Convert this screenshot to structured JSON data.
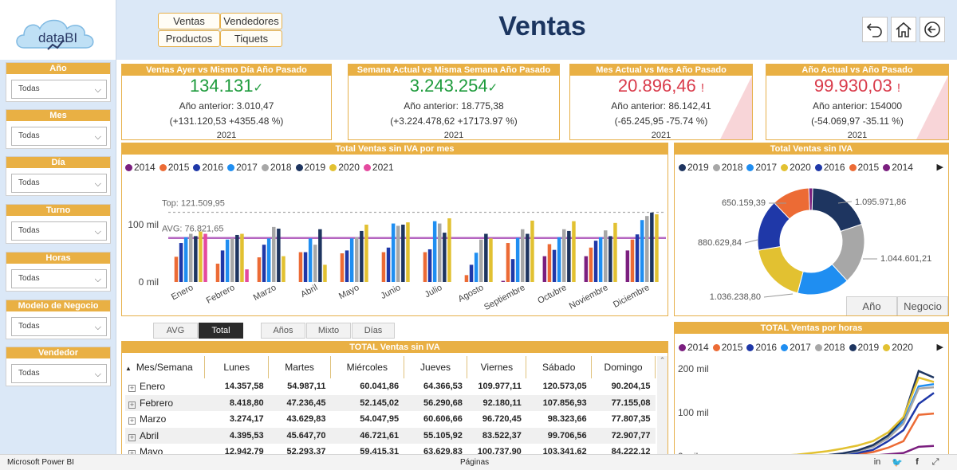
{
  "app": {
    "logo_text": "dataBI",
    "title": "Ventas"
  },
  "nav": [
    {
      "label": "Ventas",
      "name": "nav-ventas-button"
    },
    {
      "label": "Vendedores",
      "name": "nav-vendedores-button"
    },
    {
      "label": "Productos",
      "name": "nav-productos-button"
    },
    {
      "label": "Tiquets",
      "name": "nav-tiquets-button"
    }
  ],
  "icons": [
    "undo-icon",
    "home-icon",
    "back-arrow-icon"
  ],
  "filters": [
    {
      "title": "Año",
      "value": "Todas"
    },
    {
      "title": "Mes",
      "value": "Todas"
    },
    {
      "title": "Día",
      "value": "Todas"
    },
    {
      "title": "Turno",
      "value": "Todas"
    },
    {
      "title": "Horas",
      "value": "Todas"
    },
    {
      "title": "Modelo de Negocio",
      "value": "Todas"
    },
    {
      "title": "Vendedor",
      "value": "Todas"
    }
  ],
  "kpis": [
    {
      "title": "Ventas Ayer vs Mismo Día Año Pasado",
      "value": "134.131",
      "mark": "✓",
      "status": "good",
      "previous": "Año anterior: 3.010,47",
      "delta": "(+131.120,53 +4355.48 %)",
      "year": "2021"
    },
    {
      "title": "Semana Actual vs Misma Semana Año Pasado",
      "value": "3.243.254",
      "mark": "✓",
      "status": "good",
      "previous": "Año anterior: 18.775,38",
      "delta": "(+3.224.478,62 +17173.97 %)",
      "year": "2021"
    },
    {
      "title": "Mes Actual vs Mes Año Pasado",
      "value": "20.896,46",
      "mark": "!",
      "status": "bad",
      "previous": "Año anterior: 86.142,41",
      "delta": "(-65.245,95 -75.74 %)",
      "year": "2021"
    },
    {
      "title": "Año Actual vs Año Pasado",
      "value": "99.930,03",
      "mark": "!",
      "status": "bad",
      "previous": "Año anterior: 154000",
      "delta": "(-54.069,97 -35.11 %)",
      "year": "2021"
    }
  ],
  "colors": {
    "2014": "#7b1f7f",
    "2015": "#ec6b35",
    "2016": "#1f38a8",
    "2017": "#1f8ef1",
    "2018": "#a7a7a7",
    "2019": "#1e3560",
    "2020": "#e2c131",
    "2021": "#e44a9f",
    "accent": "#e9b044",
    "avg_line": "#b565c0"
  },
  "monthly_chart": {
    "title": "Total Ventas sin IVA por mes",
    "legend": [
      "2014",
      "2015",
      "2016",
      "2017",
      "2018",
      "2019",
      "2020",
      "2021"
    ],
    "top_label": "Top: 121.509,95",
    "avg_label": "AVG: 76.821,65",
    "y_ticks": [
      "100 mil",
      "0 mil"
    ]
  },
  "donut_chart": {
    "title": "Total Ventas sin IVA",
    "legend": [
      "2019",
      "2018",
      "2017",
      "2020",
      "2016",
      "2015",
      "2014"
    ],
    "buttons": [
      "Año",
      "Negocio"
    ]
  },
  "toggles": {
    "left": [
      {
        "label": "AVG",
        "active": false
      },
      {
        "label": "Total",
        "active": true
      }
    ],
    "right": [
      {
        "label": "Años"
      },
      {
        "label": "Mixto"
      },
      {
        "label": "Días"
      }
    ]
  },
  "table": {
    "title": "TOTAL Ventas sin IVA",
    "headers": [
      "Mes/Semana",
      "Lunes",
      "Martes",
      "Miércoles",
      "Jueves",
      "Viernes",
      "Sábado",
      "Domingo"
    ],
    "rows": [
      [
        "Enero",
        "14.357,58",
        "54.987,11",
        "60.041,86",
        "64.366,53",
        "109.977,11",
        "120.573,05",
        "90.204,15"
      ],
      [
        "Febrero",
        "8.418,80",
        "47.236,45",
        "52.145,02",
        "56.290,68",
        "92.180,11",
        "107.856,93",
        "77.155,08"
      ],
      [
        "Marzo",
        "3.274,17",
        "43.629,83",
        "54.047,95",
        "60.606,66",
        "96.720,45",
        "98.323,66",
        "77.807,35"
      ],
      [
        "Abril",
        "4.395,53",
        "45.647,70",
        "46.721,61",
        "55.105,92",
        "83.522,37",
        "99.706,56",
        "72.907,77"
      ],
      [
        "Mayo",
        "12.942,79",
        "52.293,37",
        "59.415,31",
        "63.629,83",
        "100.737,90",
        "103.341,62",
        "84.222,12"
      ]
    ]
  },
  "hours_chart": {
    "title": "TOTAL Ventas por horas",
    "legend": [
      "2014",
      "2015",
      "2016",
      "2017",
      "2018",
      "2019",
      "2020"
    ],
    "y_ticks": [
      "200 mil",
      "100 mil",
      "0 mil"
    ]
  },
  "chart_data": [
    {
      "type": "bar",
      "title": "Total Ventas sin IVA por mes",
      "categories": [
        "Enero",
        "Febrero",
        "Marzo",
        "Abril",
        "Mayo",
        "Junio",
        "Julio",
        "Agosto",
        "Septiembre",
        "Octubre",
        "Noviembre",
        "Diciembre"
      ],
      "series": [
        {
          "name": "2014",
          "values": [
            0,
            0,
            0,
            0,
            0,
            0,
            0,
            0,
            2,
            45,
            45,
            55
          ]
        },
        {
          "name": "2015",
          "values": [
            44,
            32,
            43,
            52,
            50,
            52,
            52,
            12,
            68,
            66,
            60,
            74
          ]
        },
        {
          "name": "2016",
          "values": [
            68,
            55,
            65,
            52,
            55,
            60,
            57,
            30,
            40,
            56,
            72,
            83
          ]
        },
        {
          "name": "2017",
          "values": [
            78,
            74,
            76,
            76,
            76,
            102,
            106,
            51,
            77,
            78,
            78,
            108
          ]
        },
        {
          "name": "2018",
          "values": [
            84,
            76,
            96,
            65,
            78,
            98,
            102,
            74,
            92,
            92,
            90,
            115
          ]
        },
        {
          "name": "2019",
          "values": [
            80,
            82,
            93,
            92,
            89,
            100,
            86,
            84,
            84,
            89,
            80,
            121
          ]
        },
        {
          "name": "2020",
          "values": [
            88,
            84,
            45,
            30,
            100,
            104,
            111,
            76,
            107,
            106,
            103,
            118
          ]
        },
        {
          "name": "2021",
          "values": [
            84,
            22,
            0,
            0,
            0,
            0,
            0,
            0,
            0,
            0,
            0,
            0
          ]
        }
      ],
      "reference_lines": {
        "top": 121509.95,
        "avg": 76821.65
      },
      "ylabel": "",
      "y_ticks": [
        "0 mil",
        "100 mil"
      ],
      "ylim": [
        0,
        130
      ]
    },
    {
      "type": "pie",
      "title": "Total Ventas sin IVA",
      "labels": [
        "2019",
        "2018",
        "2017",
        "2020",
        "2016",
        "2015",
        "2014"
      ],
      "values": [
        1095971.86,
        1044601.21,
        900000,
        1036238.8,
        880629.84,
        650159.39,
        65000
      ]
    },
    {
      "type": "line",
      "title": "TOTAL Ventas por horas",
      "x": [
        0,
        1,
        2,
        3,
        4,
        5,
        6,
        7,
        8,
        9,
        10,
        11,
        12,
        13,
        14
      ],
      "series": [
        {
          "name": "2014",
          "values": [
            0,
            0,
            0,
            0,
            0,
            0,
            0,
            0,
            0,
            0,
            2,
            5,
            8,
            22,
            24
          ]
        },
        {
          "name": "2015",
          "values": [
            0,
            0,
            0,
            0,
            0,
            0,
            0,
            1,
            3,
            5,
            10,
            20,
            35,
            95,
            98
          ]
        },
        {
          "name": "2016",
          "values": [
            0,
            0,
            0,
            0,
            0,
            0,
            1,
            2,
            4,
            8,
            15,
            35,
            60,
            120,
            145
          ]
        },
        {
          "name": "2017",
          "values": [
            0,
            0,
            0,
            0,
            0,
            0,
            1,
            3,
            6,
            12,
            22,
            45,
            80,
            160,
            165
          ]
        },
        {
          "name": "2018",
          "values": [
            0,
            0,
            0,
            0,
            0,
            0,
            1,
            3,
            6,
            12,
            22,
            42,
            75,
            155,
            158
          ]
        },
        {
          "name": "2019",
          "values": [
            0,
            0,
            0,
            0,
            0,
            0,
            1,
            3,
            7,
            14,
            26,
            48,
            88,
            195,
            180
          ]
        },
        {
          "name": "2020",
          "values": [
            0,
            0,
            0,
            1,
            2,
            4,
            8,
            12,
            18,
            25,
            35,
            55,
            90,
            180,
            170
          ]
        }
      ],
      "y_ticks": [
        "0 mil",
        "100 mil",
        "200 mil"
      ],
      "ylim": [
        0,
        220
      ]
    }
  ],
  "status_bar": {
    "left": "Microsoft Power BI",
    "center": "Páginas"
  }
}
